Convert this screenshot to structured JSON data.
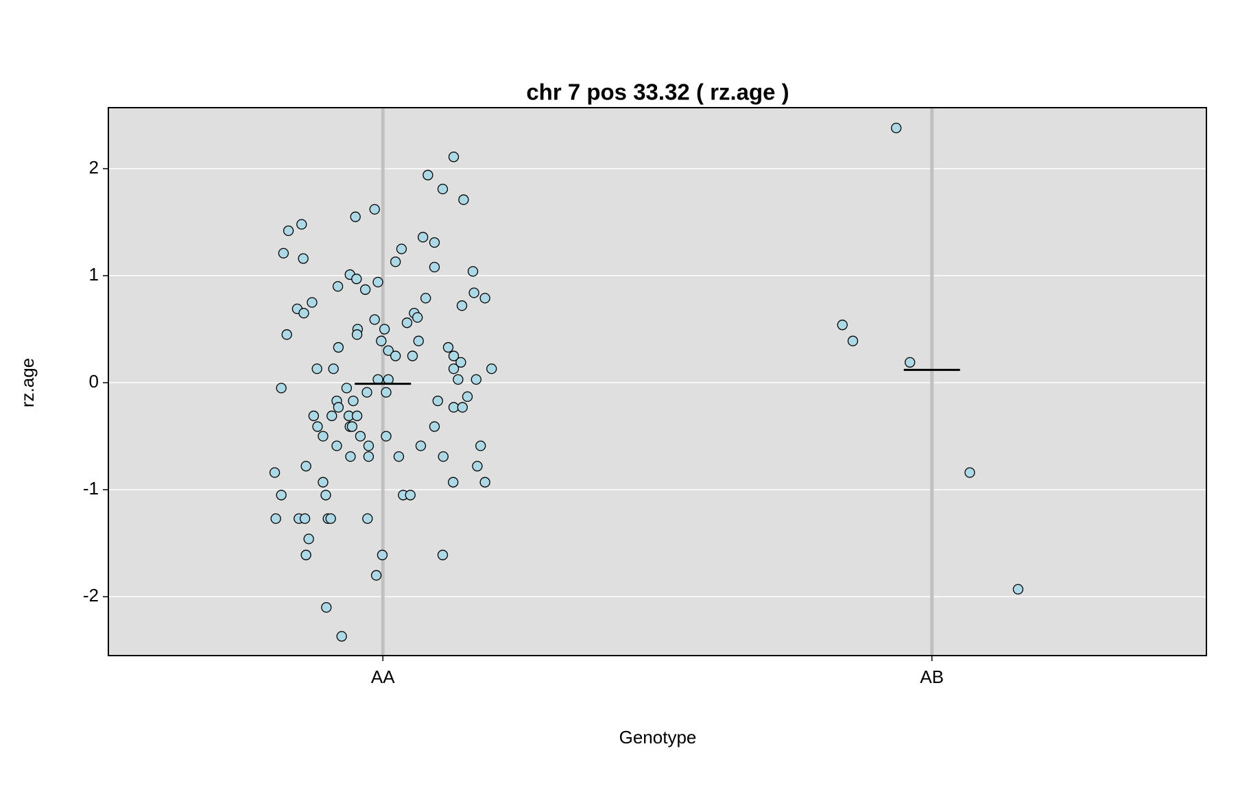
{
  "chart_data": {
    "type": "strip",
    "title": "chr 7 pos 33.32 ( rz.age )",
    "x_label": "Genotype",
    "y_label": "rz.age",
    "xlim": [
      0.5,
      2.5
    ],
    "ylim": [
      -2.55,
      2.57
    ],
    "xticks": [
      {
        "value": 1,
        "label": "AA"
      },
      {
        "value": 2,
        "label": "AB"
      }
    ],
    "yticks": [
      -2,
      -1,
      0,
      1,
      2
    ],
    "grid": true,
    "point_color": "#add8e6",
    "background": "#dfdfdf",
    "series": [
      {
        "x": [
          0.803,
          0.805,
          0.815,
          0.815,
          0.819,
          0.828,
          0.852,
          0.855,
          0.844,
          0.856,
          0.871,
          0.825,
          0.88,
          0.874,
          0.881,
          0.891,
          0.86,
          0.891,
          0.896,
          0.847,
          0.858,
          0.9,
          0.905,
          0.865,
          0.86,
          0.897,
          0.925,
          0.918,
          0.919,
          0.91,
          0.907,
          0.916,
          0.919,
          0.916,
          0.934,
          0.94,
          0.952,
          0.95,
          0.954,
          0.953,
          0.938,
          0.94,
          0.944,
          0.946,
          0.953,
          0.959,
          0.941,
          0.968,
          0.971,
          0.974,
          0.974,
          0.972,
          0.985,
          0.985,
          0.991,
          0.997,
          1.003,
          0.991,
          1.01,
          1.006,
          1.01,
          1.023,
          1.006,
          1.029,
          0.999,
          0.988,
          1.023,
          1.034,
          1.044,
          1.057,
          1.063,
          1.065,
          1.054,
          1.037,
          1.05,
          1.069,
          1.073,
          1.078,
          1.082,
          1.094,
          1.094,
          1.1,
          1.094,
          1.109,
          1.11,
          1.109,
          1.119,
          1.129,
          1.129,
          1.137,
          1.142,
          1.129,
          1.145,
          1.128,
          1.129,
          1.147,
          1.144,
          1.154,
          1.164,
          1.166,
          1.17,
          1.172,
          1.178,
          1.186,
          1.186,
          1.198
        ],
        "values": [
          -0.84,
          -1.27,
          -1.05,
          -0.05,
          1.21,
          1.42,
          1.48,
          1.16,
          0.69,
          0.65,
          0.75,
          0.45,
          0.13,
          -0.31,
          -0.41,
          -0.5,
          -0.78,
          -0.93,
          -1.05,
          -1.27,
          -1.27,
          -1.27,
          -1.27,
          -1.46,
          -1.61,
          -2.1,
          -2.37,
          0.9,
          0.33,
          0.13,
          -0.31,
          -0.17,
          -0.23,
          -0.59,
          -0.05,
          1.01,
          0.97,
          1.55,
          0.5,
          0.45,
          -0.31,
          -0.41,
          -0.41,
          -0.17,
          -0.31,
          -0.5,
          -0.69,
          0.87,
          -0.09,
          -0.59,
          -0.69,
          -1.27,
          1.62,
          0.59,
          0.94,
          0.39,
          0.5,
          0.03,
          0.03,
          -0.09,
          0.3,
          0.25,
          -0.5,
          -0.69,
          -1.61,
          -1.8,
          1.13,
          1.25,
          0.56,
          0.65,
          0.61,
          0.39,
          0.25,
          -1.05,
          -1.05,
          -0.59,
          1.36,
          0.79,
          1.94,
          1.31,
          1.08,
          -0.17,
          -0.41,
          1.81,
          -0.69,
          -1.61,
          0.33,
          0.25,
          0.13,
          0.03,
          0.19,
          -0.23,
          -0.23,
          -0.93,
          2.11,
          1.71,
          0.72,
          -0.13,
          1.04,
          0.84,
          0.03,
          -0.78,
          -0.59,
          0.79,
          -0.93,
          0.13
        ],
        "mean": -0.01
      },
      {
        "x": [
          1.935,
          1.837,
          1.856,
          1.96,
          2.069,
          2.157
        ],
        "values": [
          2.38,
          0.54,
          0.39,
          0.19,
          -0.84,
          -1.93
        ],
        "mean": 0.12
      }
    ]
  }
}
